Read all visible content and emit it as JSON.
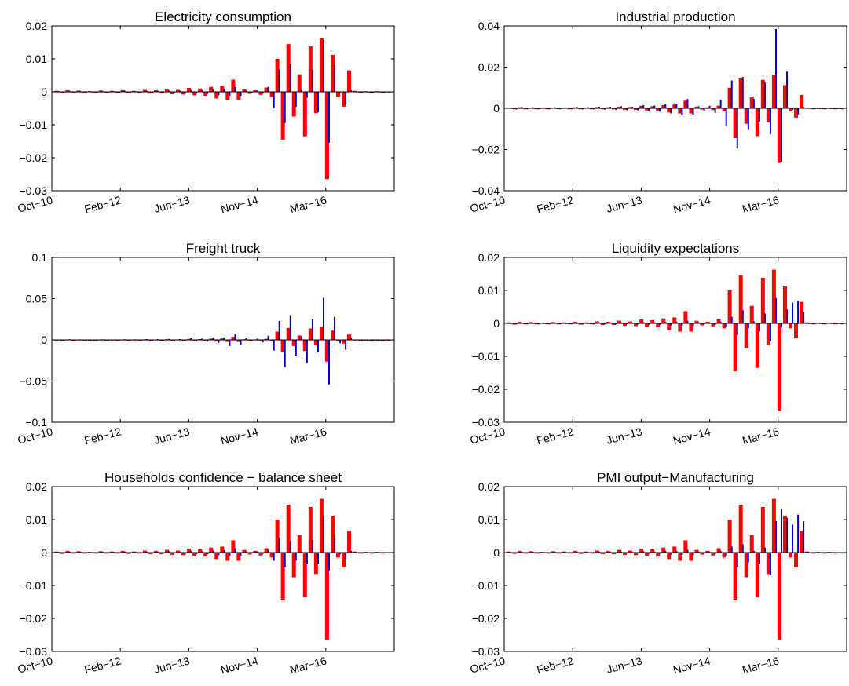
{
  "chart_data": [
    {
      "type": "bar",
      "title": "Electricity consumption",
      "xlabel": "",
      "ylabel": "",
      "x_ticks": [
        "Oct−10",
        "Feb−12",
        "Jun−13",
        "Nov−14",
        "Mar−16"
      ],
      "ylim": [
        -0.03,
        0.02
      ],
      "y_ticks": [
        -0.03,
        -0.02,
        -0.01,
        0,
        0.01,
        0.02
      ],
      "y_tick_labels": [
        "−0.03",
        "−0.02",
        "−0.01",
        "0",
        "0.01",
        "0.02"
      ],
      "series": [
        {
          "color": "#ff0000",
          "values": [
            0.0003,
            -0.0004,
            0.0005,
            -0.0003,
            0.0004,
            -0.0003,
            0.0002,
            -0.0002,
            0.0004,
            -0.0003,
            0.0003,
            -0.0002,
            0.0005,
            -0.0004,
            0.0003,
            -0.0003,
            0.0006,
            -0.0005,
            0.0005,
            -0.0005,
            0.0008,
            -0.0007,
            0.0006,
            -0.0008,
            0.0012,
            -0.001,
            0.001,
            -0.0012,
            0.0015,
            -0.002,
            0.0018,
            -0.0025,
            0.0037,
            -0.0025,
            0.0008,
            -0.0006,
            0.0005,
            -0.0009,
            0.0013,
            -0.0015,
            0.01,
            -0.0145,
            0.0145,
            -0.0075,
            0.0053,
            -0.0135,
            0.0138,
            -0.0065,
            0.0163,
            -0.0265,
            0.0112,
            -0.0015,
            -0.0045,
            0.0065,
            0.0003,
            -0.0002,
            0.0002,
            -0.0002,
            0.0002,
            -0.0001,
            0.0001
          ]
        },
        {
          "color": "#0000cc",
          "values": [
            0.0002,
            -0.0003,
            0.0003,
            -0.0002,
            0.0002,
            -0.0002,
            0.0001,
            -0.0001,
            0.0002,
            -0.0002,
            0.0002,
            -0.0001,
            0.0003,
            -0.0002,
            0.0002,
            -0.0002,
            0.0003,
            -0.0003,
            0.0003,
            -0.0003,
            0.0004,
            -0.0004,
            0.0003,
            -0.0004,
            0.0005,
            -0.0005,
            0.0005,
            -0.0006,
            0.0007,
            -0.001,
            0.0009,
            -0.0012,
            0.0015,
            -0.0012,
            0.0004,
            -0.0003,
            0.0003,
            -0.0005,
            0.0015,
            -0.005,
            0.0068,
            -0.0095,
            0.0085,
            -0.0045,
            0.0005,
            -0.0018,
            0.0068,
            -0.0062,
            0.0157,
            -0.0155,
            0.0082,
            -0.0003,
            -0.0036,
            0.0005,
            0.0001,
            -0.0001,
            0.0001,
            -0.0001,
            0.0001,
            0.0,
            0.0
          ]
        }
      ]
    },
    {
      "type": "bar",
      "title": "Industrial production",
      "xlabel": "",
      "ylabel": "",
      "x_ticks": [
        "Oct−10",
        "Feb−12",
        "Jun−13",
        "Nov−14",
        "Mar−16"
      ],
      "ylim": [
        -0.04,
        0.04
      ],
      "y_ticks": [
        -0.04,
        -0.02,
        0,
        0.02,
        0.04
      ],
      "y_tick_labels": [
        "−0.04",
        "−0.02",
        "0",
        "0.02",
        "0.04"
      ],
      "series": [
        {
          "color": "#ff0000",
          "values": [
            0.0003,
            -0.0004,
            0.0005,
            -0.0003,
            0.0004,
            -0.0003,
            0.0002,
            -0.0002,
            0.0004,
            -0.0003,
            0.0003,
            -0.0002,
            0.0005,
            -0.0004,
            0.0003,
            -0.0003,
            0.0006,
            -0.0005,
            0.0005,
            -0.0005,
            0.0008,
            -0.0007,
            0.0006,
            -0.0008,
            0.0012,
            -0.001,
            0.001,
            -0.0012,
            0.0015,
            -0.002,
            0.0018,
            -0.0025,
            0.0037,
            -0.0025,
            0.0008,
            -0.0006,
            0.0005,
            -0.0009,
            0.0013,
            -0.0015,
            0.01,
            -0.0145,
            0.0145,
            -0.0075,
            0.0053,
            -0.0135,
            0.0138,
            -0.0065,
            0.0163,
            -0.0265,
            0.0112,
            -0.0015,
            -0.0045,
            0.0065,
            0.0003,
            -0.0002,
            0.0002,
            -0.0002,
            0.0002,
            -0.0001,
            0.0001
          ]
        },
        {
          "color": "#0000cc",
          "values": [
            0.0004,
            -0.0005,
            0.0006,
            -0.0004,
            0.0005,
            -0.0004,
            0.0003,
            -0.0003,
            0.0005,
            -0.0004,
            0.0004,
            -0.0003,
            0.0006,
            -0.0005,
            0.0005,
            -0.0004,
            0.0008,
            -0.0006,
            0.0007,
            -0.0007,
            0.001,
            -0.0009,
            0.0008,
            -0.001,
            0.0015,
            -0.0013,
            0.0013,
            -0.0016,
            0.002,
            -0.0025,
            0.0023,
            -0.0035,
            0.0045,
            -0.003,
            0.001,
            -0.0012,
            0.0012,
            -0.0022,
            0.004,
            -0.0085,
            0.0135,
            -0.0195,
            0.0152,
            -0.0102,
            0.0045,
            -0.0065,
            0.0125,
            -0.0125,
            0.0385,
            -0.026,
            0.0178,
            -0.0008,
            -0.003,
            0.0006,
            0.0002,
            -0.0001,
            0.0001,
            -0.0001,
            0.0001,
            0.0,
            0.0
          ]
        }
      ]
    },
    {
      "type": "bar",
      "title": "Freight truck",
      "xlabel": "",
      "ylabel": "",
      "x_ticks": [
        "Oct−10",
        "Feb−12",
        "Jun−13",
        "Nov−14",
        "Mar−16"
      ],
      "ylim": [
        -0.1,
        0.1
      ],
      "y_ticks": [
        -0.1,
        -0.05,
        0,
        0.05,
        0.1
      ],
      "y_tick_labels": [
        "−0.1",
        "−0.05",
        "0",
        "0.05",
        "0.1"
      ],
      "series": [
        {
          "color": "#ff0000",
          "values": [
            0.0003,
            -0.0004,
            0.0005,
            -0.0003,
            0.0004,
            -0.0003,
            0.0002,
            -0.0002,
            0.0004,
            -0.0003,
            0.0003,
            -0.0002,
            0.0005,
            -0.0004,
            0.0003,
            -0.0003,
            0.0006,
            -0.0005,
            0.0005,
            -0.0005,
            0.0008,
            -0.0007,
            0.0006,
            -0.0008,
            0.0012,
            -0.001,
            0.001,
            -0.0012,
            0.0015,
            -0.002,
            0.0018,
            -0.0025,
            0.0037,
            -0.0025,
            0.0008,
            -0.0006,
            0.0005,
            -0.0009,
            0.0013,
            -0.0015,
            0.01,
            -0.0145,
            0.0145,
            -0.0075,
            0.0053,
            -0.0135,
            0.0138,
            -0.0065,
            0.0163,
            -0.0265,
            0.0112,
            -0.0015,
            -0.0045,
            0.0065,
            0.0003,
            -0.0002,
            0.0002,
            -0.0002,
            0.0002,
            -0.0001,
            0.0001
          ]
        },
        {
          "color": "#0000cc",
          "values": [
            0.0005,
            -0.0006,
            0.0008,
            -0.0005,
            0.0006,
            -0.0005,
            0.0004,
            -0.0004,
            0.0006,
            -0.0005,
            0.0005,
            -0.0004,
            0.0008,
            -0.0006,
            0.0006,
            -0.0005,
            0.001,
            -0.0008,
            0.0009,
            -0.0009,
            0.0012,
            -0.0011,
            0.001,
            -0.0012,
            0.002,
            -0.0018,
            0.0016,
            -0.002,
            0.0025,
            -0.0035,
            0.003,
            -0.0075,
            0.0075,
            -0.006,
            0.002,
            -0.0015,
            0.0015,
            -0.003,
            0.005,
            -0.013,
            0.023,
            -0.033,
            0.03,
            -0.02,
            0.004,
            -0.028,
            0.025,
            -0.015,
            0.051,
            -0.054,
            0.028,
            -0.004,
            -0.012,
            0.002,
            0.0005,
            -0.0003,
            0.0003,
            -0.0002,
            0.0002,
            -0.0001,
            0.0001
          ]
        }
      ]
    },
    {
      "type": "bar",
      "title": "Liquidity expectations",
      "xlabel": "",
      "ylabel": "",
      "x_ticks": [
        "Oct−10",
        "Feb−12",
        "Jun−13",
        "Nov−14",
        "Mar−16"
      ],
      "ylim": [
        -0.03,
        0.02
      ],
      "y_ticks": [
        -0.03,
        -0.02,
        -0.01,
        0,
        0.01,
        0.02
      ],
      "y_tick_labels": [
        "−0.03",
        "−0.02",
        "−0.01",
        "0",
        "0.01",
        "0.02"
      ],
      "series": [
        {
          "color": "#ff0000",
          "values": [
            0.0003,
            -0.0004,
            0.0005,
            -0.0003,
            0.0004,
            -0.0003,
            0.0002,
            -0.0002,
            0.0004,
            -0.0003,
            0.0003,
            -0.0002,
            0.0005,
            -0.0004,
            0.0003,
            -0.0003,
            0.0006,
            -0.0005,
            0.0005,
            -0.0005,
            0.0008,
            -0.0007,
            0.0006,
            -0.0008,
            0.0012,
            -0.001,
            0.001,
            -0.0012,
            0.0015,
            -0.002,
            0.0018,
            -0.0025,
            0.0037,
            -0.0025,
            0.0008,
            -0.0006,
            0.0005,
            -0.0009,
            0.0013,
            -0.0015,
            0.01,
            -0.0145,
            0.0145,
            -0.0075,
            0.0053,
            -0.0135,
            0.0138,
            -0.0065,
            0.0163,
            -0.0265,
            0.0112,
            -0.0015,
            -0.0045,
            0.0065,
            0.0003,
            -0.0002,
            0.0002,
            -0.0002,
            0.0002,
            -0.0001,
            0.0001
          ]
        },
        {
          "color": "#0000cc",
          "values": [
            0.0001,
            -0.0002,
            0.0002,
            -0.0001,
            0.0002,
            -0.0001,
            0.0001,
            -0.0001,
            0.0002,
            -0.0001,
            0.0001,
            -0.0001,
            0.0002,
            -0.0002,
            0.0001,
            -0.0001,
            0.0003,
            -0.0002,
            0.0002,
            -0.0002,
            0.0003,
            -0.0003,
            0.0002,
            -0.0003,
            0.0004,
            -0.0004,
            0.0003,
            -0.0004,
            0.0005,
            -0.0006,
            0.0005,
            -0.0007,
            0.0008,
            -0.0008,
            0.0003,
            -0.0002,
            0.0002,
            -0.0004,
            0.0005,
            -0.001,
            0.002,
            -0.0035,
            0.004,
            -0.0015,
            0.0006,
            -0.0025,
            0.003,
            -0.0055,
            0.0077,
            -0.0012,
            0.0042,
            0.0063,
            0.0068,
            0.0035,
            0.0001,
            -0.0001,
            0.0001,
            -0.0001,
            0.0001,
            0.0,
            0.0
          ]
        }
      ]
    },
    {
      "type": "bar",
      "title": "Households confidence − balance sheet",
      "xlabel": "",
      "ylabel": "",
      "x_ticks": [
        "Oct−10",
        "Feb−12",
        "Jun−13",
        "Nov−14",
        "Mar−16"
      ],
      "ylim": [
        -0.03,
        0.02
      ],
      "y_ticks": [
        -0.03,
        -0.02,
        -0.01,
        0,
        0.01,
        0.02
      ],
      "y_tick_labels": [
        "−0.03",
        "−0.02",
        "−0.01",
        "0",
        "0.01",
        "0.02"
      ],
      "series": [
        {
          "color": "#ff0000",
          "values": [
            0.0003,
            -0.0004,
            0.0005,
            -0.0003,
            0.0004,
            -0.0003,
            0.0002,
            -0.0002,
            0.0004,
            -0.0003,
            0.0003,
            -0.0002,
            0.0005,
            -0.0004,
            0.0003,
            -0.0003,
            0.0006,
            -0.0005,
            0.0005,
            -0.0005,
            0.0008,
            -0.0007,
            0.0006,
            -0.0008,
            0.0012,
            -0.001,
            0.001,
            -0.0012,
            0.0015,
            -0.002,
            0.0018,
            -0.0025,
            0.0037,
            -0.0025,
            0.0008,
            -0.0006,
            0.0005,
            -0.0009,
            0.0013,
            -0.0015,
            0.01,
            -0.0145,
            0.0145,
            -0.0075,
            0.0053,
            -0.0135,
            0.0138,
            -0.0065,
            0.0163,
            -0.0265,
            0.0112,
            -0.0015,
            -0.0045,
            0.0065,
            0.0003,
            -0.0002,
            0.0002,
            -0.0002,
            0.0002,
            -0.0001,
            0.0001
          ]
        },
        {
          "color": "#0000cc",
          "values": [
            0.0002,
            -0.0002,
            0.0003,
            -0.0002,
            0.0002,
            -0.0002,
            0.0001,
            -0.0001,
            0.0002,
            -0.0002,
            0.0002,
            -0.0001,
            0.0003,
            -0.0002,
            0.0002,
            -0.0002,
            0.0003,
            -0.0003,
            0.0003,
            -0.0003,
            0.0004,
            -0.0003,
            0.0003,
            -0.0004,
            0.0005,
            -0.0005,
            0.0004,
            -0.0005,
            0.0006,
            -0.0008,
            0.0007,
            -0.001,
            0.0013,
            -0.001,
            0.0004,
            -0.0003,
            0.0003,
            -0.0004,
            0.0008,
            -0.0025,
            0.0045,
            -0.0045,
            0.0035,
            -0.0025,
            0.0003,
            -0.0035,
            0.0038,
            -0.0035,
            0.0113,
            -0.0055,
            0.0052,
            -0.0005,
            -0.002,
            0.0005,
            0.0001,
            -0.0001,
            0.0001,
            -0.0001,
            0.0001,
            0.0,
            0.0
          ]
        }
      ]
    },
    {
      "type": "bar",
      "title": "PMI output−Manufacturing",
      "xlabel": "",
      "ylabel": "",
      "x_ticks": [
        "Oct−10",
        "Feb−12",
        "Jun−13",
        "Nov−14",
        "Mar−16"
      ],
      "ylim": [
        -0.03,
        0.02
      ],
      "y_ticks": [
        -0.03,
        -0.02,
        -0.01,
        0,
        0.01,
        0.02
      ],
      "y_tick_labels": [
        "−0.03",
        "−0.02",
        "−0.01",
        "0",
        "0.01",
        "0.02"
      ],
      "series": [
        {
          "color": "#ff0000",
          "values": [
            0.0003,
            -0.0004,
            0.0005,
            -0.0003,
            0.0004,
            -0.0003,
            0.0002,
            -0.0002,
            0.0004,
            -0.0003,
            0.0003,
            -0.0002,
            0.0005,
            -0.0004,
            0.0003,
            -0.0003,
            0.0006,
            -0.0005,
            0.0005,
            -0.0005,
            0.0008,
            -0.0007,
            0.0006,
            -0.0008,
            0.0012,
            -0.001,
            0.001,
            -0.0012,
            0.0015,
            -0.002,
            0.0018,
            -0.0025,
            0.0037,
            -0.0025,
            0.0008,
            -0.0006,
            0.0005,
            -0.0009,
            0.0013,
            -0.0015,
            0.01,
            -0.0145,
            0.0145,
            -0.0075,
            0.0053,
            -0.0135,
            0.0138,
            -0.0065,
            0.0163,
            -0.0265,
            0.0112,
            -0.0015,
            -0.0045,
            0.0065,
            0.0003,
            -0.0002,
            0.0002,
            -0.0002,
            0.0002,
            -0.0001,
            0.0001
          ]
        },
        {
          "color": "#0000cc",
          "values": [
            0.0001,
            -0.0002,
            0.0002,
            -0.0001,
            0.0002,
            -0.0001,
            0.0001,
            -0.0001,
            0.0002,
            -0.0001,
            0.0001,
            -0.0001,
            0.0002,
            -0.0002,
            0.0001,
            -0.0001,
            0.0003,
            -0.0002,
            0.0002,
            -0.0002,
            0.0003,
            -0.0003,
            0.0002,
            -0.0003,
            0.0004,
            -0.0004,
            0.0003,
            -0.0004,
            0.0005,
            -0.0006,
            0.0005,
            -0.0007,
            0.0008,
            -0.0008,
            0.0003,
            -0.0002,
            0.0002,
            -0.0004,
            0.0005,
            -0.001,
            0.0018,
            -0.0045,
            0.0025,
            -0.003,
            0.0005,
            -0.0035,
            0.0015,
            -0.0068,
            0.0095,
            0.0133,
            0.0105,
            0.0085,
            0.0115,
            0.0095,
            0.0001,
            -0.0001,
            0.0001,
            -0.0001,
            0.0001,
            0.0,
            0.0
          ]
        }
      ]
    }
  ]
}
